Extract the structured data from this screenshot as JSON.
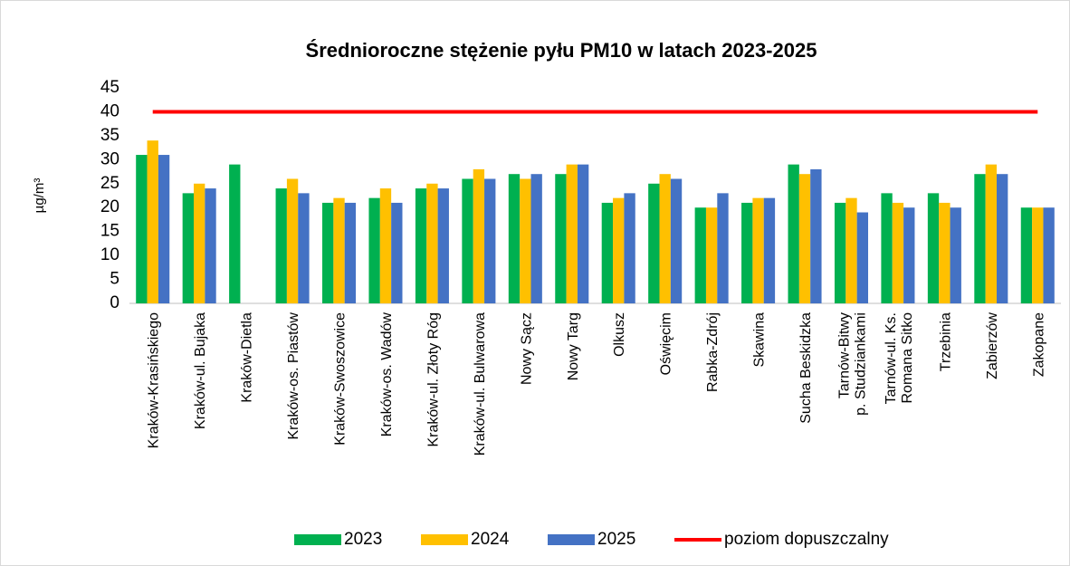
{
  "chart_data": {
    "type": "bar",
    "title": "Średnioroczne stężenie pyłu PM10 w latach 2023-2025",
    "y_label": "µg/m³",
    "categories": [
      [
        "Kraków-Krasińskiego"
      ],
      [
        "Kraków-ul. Bujaka"
      ],
      [
        "Kraków-Dietla"
      ],
      [
        "Kraków-os. Piastów"
      ],
      [
        "Kraków-Swoszowice"
      ],
      [
        "Kraków-os. Wadów"
      ],
      [
        "Kraków-ul. Złoty Róg"
      ],
      [
        "Kraków-ul. Bulwarowa"
      ],
      [
        "Nowy Sącz"
      ],
      [
        "Nowy Targ"
      ],
      [
        "Olkusz"
      ],
      [
        "Oświęcim"
      ],
      [
        "Rabka-Zdrój"
      ],
      [
        "Skawina"
      ],
      [
        "Sucha Beskidzka"
      ],
      [
        "Tarnów-Bitwy",
        "p. Studziankami"
      ],
      [
        "Tarnów-ul. Ks.",
        "Romana Sitko"
      ],
      [
        "Trzebinia"
      ],
      [
        "Zabierzów"
      ],
      [
        "Zakopane"
      ]
    ],
    "series": [
      {
        "name": "2023",
        "color": "#00b050",
        "values": [
          31,
          23,
          29,
          24,
          21,
          22,
          24,
          26,
          27,
          27,
          21,
          25,
          20,
          21,
          29,
          21,
          23,
          23,
          27,
          20
        ]
      },
      {
        "name": "2024",
        "color": "#ffc000",
        "values": [
          34,
          25,
          null,
          26,
          22,
          24,
          25,
          28,
          26,
          29,
          22,
          27,
          20,
          22,
          27,
          22,
          21,
          21,
          29,
          20
        ]
      },
      {
        "name": "2025",
        "color": "#4472c4",
        "values": [
          31,
          24,
          null,
          23,
          21,
          21,
          24,
          26,
          27,
          29,
          23,
          26,
          23,
          22,
          28,
          19,
          20,
          20,
          27,
          20
        ]
      },
      {
        "name": "poziom dopuszczalny",
        "color": "#ff0000",
        "type": "line",
        "values": [
          40,
          40,
          40,
          40,
          40,
          40,
          40,
          40,
          40,
          40,
          40,
          40,
          40,
          40,
          40,
          40,
          40,
          40,
          40,
          40
        ]
      }
    ],
    "ylim": [
      0,
      45
    ],
    "yticks": [
      0,
      5,
      10,
      15,
      20,
      25,
      30,
      35,
      40,
      45
    ],
    "grid": false,
    "legend": "bottom"
  }
}
